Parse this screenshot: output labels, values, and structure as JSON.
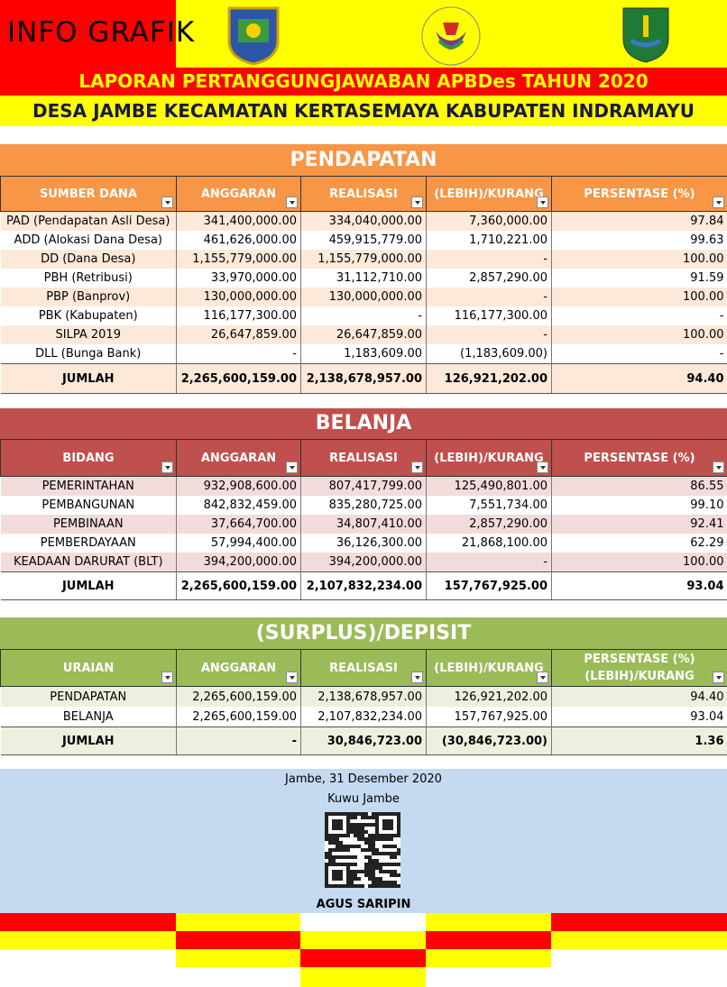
{
  "header": {
    "title": "INFO GRAFIK",
    "line1": "LAPORAN PERTANGGUNGJAWABAN APBDes TAHUN 2020",
    "line2": "DESA JAMBE KECAMATAN KERTASEMAYA KABUPATEN INDRAMAYU"
  },
  "sections": [
    {
      "title": "PENDAPATAN",
      "columns": [
        "SUMBER DANA",
        "ANGGARAN",
        "REALISASI",
        "(LEBIH)/KURANG",
        "PERSENTASE (%)"
      ],
      "rows": [
        [
          "PAD (Pendapatan Asli Desa)",
          "341,400,000.00",
          "334,040,000.00",
          "7,360,000.00",
          "97.84"
        ],
        [
          "ADD (Alokasi Dana Desa)",
          "461,626,000.00",
          "459,915,779.00",
          "1,710,221.00",
          "99.63"
        ],
        [
          "DD (Dana Desa)",
          "1,155,779,000.00",
          "1,155,779,000.00",
          "-",
          "100.00"
        ],
        [
          "PBH (Retribusi)",
          "33,970,000.00",
          "31,112,710.00",
          "2,857,290.00",
          "91.59"
        ],
        [
          "PBP (Banprov)",
          "130,000,000.00",
          "130,000,000.00",
          "-",
          "100.00"
        ],
        [
          "PBK (Kabupaten)",
          "116,177,300.00",
          "-",
          "116,177,300.00",
          "-"
        ],
        [
          "SILPA 2019",
          "26,647,859.00",
          "26,647,859.00",
          "-",
          "100.00"
        ],
        [
          "DLL (Bunga Bank)",
          "-",
          "1,183,609.00",
          "(1,183,609.00)",
          "-"
        ]
      ],
      "total": [
        "JUMLAH",
        "2,265,600,159.00",
        "2,138,678,957.00",
        "126,921,202.00",
        "94.40"
      ]
    },
    {
      "title": "BELANJA",
      "columns": [
        "BIDANG",
        "ANGGARAN",
        "REALISASI",
        "(LEBIH)/KURANG",
        "PERSENTASE (%)"
      ],
      "rows": [
        [
          "PEMERINTAHAN",
          "932,908,600.00",
          "807,417,799.00",
          "125,490,801.00",
          "86.55"
        ],
        [
          "PEMBANGUNAN",
          "842,832,459.00",
          "835,280,725.00",
          "7,551,734.00",
          "99.10"
        ],
        [
          "PEMBINAAN",
          "37,664,700.00",
          "34,807,410.00",
          "2,857,290.00",
          "92.41"
        ],
        [
          "PEMBERDAYAAN",
          "57,994,400.00",
          "36,126,300.00",
          "21,868,100.00",
          "62.29"
        ],
        [
          "KEADAAN DARURAT (BLT)",
          "394,200,000.00",
          "394,200,000.00",
          "-",
          "100.00"
        ]
      ],
      "total": [
        "JUMLAH",
        "2,265,600,159.00",
        "2,107,832,234.00",
        "157,767,925.00",
        "93.04"
      ]
    },
    {
      "title": "(SURPLUS)/DEPISIT",
      "columns": [
        "URAIAN",
        "ANGGARAN",
        "REALISASI",
        "(LEBIH)/KURANG",
        "PERSENTASE (%) (LEBIH)/KURANG"
      ],
      "rows": [
        [
          "PENDAPATAN",
          "2,265,600,159.00",
          "2,138,678,957.00",
          "126,921,202.00",
          "94.40"
        ],
        [
          "BELANJA",
          "2,265,600,159.00",
          "2,107,832,234.00",
          "157,767,925.00",
          "93.04"
        ]
      ],
      "total": [
        "JUMLAH",
        "-",
        "30,846,723.00",
        "(30,846,723.00)",
        "1.36"
      ]
    }
  ],
  "footer": {
    "place_date": "Jambe, 31 Desember 2020",
    "position": "Kuwu Jambe",
    "name": "AGUS SARIPIN"
  }
}
